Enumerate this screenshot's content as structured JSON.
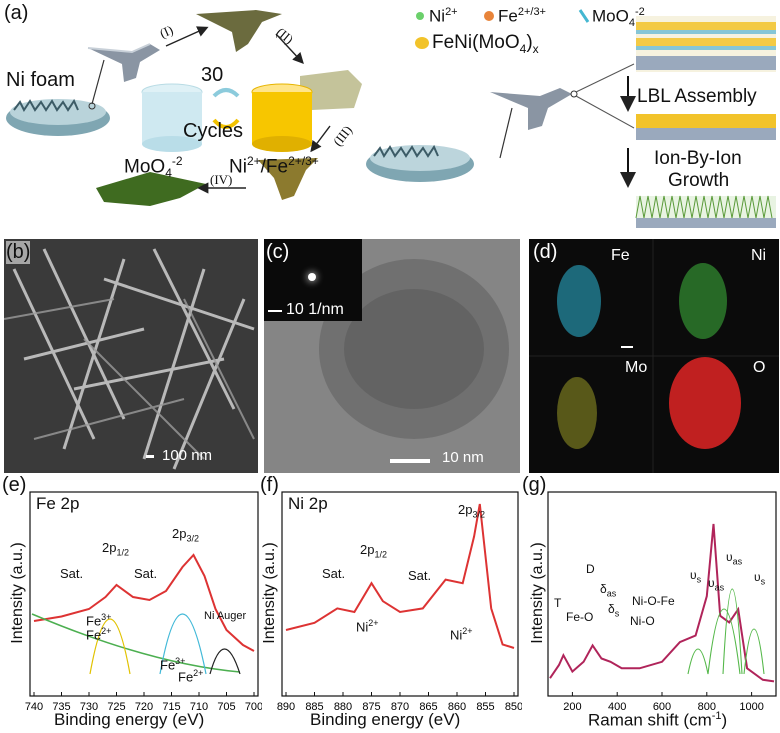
{
  "panels": {
    "a": {
      "label": "(a)",
      "ni_foam": "Ni foam",
      "steps": [
        "(I)",
        "(II)",
        "(III)",
        "(IV)"
      ],
      "cycles_number": "30",
      "cycles_word": "Cycles",
      "moo4_label": "MoO",
      "moo4_sub": "4",
      "moo4_sup": "-2",
      "nife_label": "Ni",
      "nife_sup1": "2+",
      "nife_mid": "/Fe",
      "nife_sup2": "2+/3+",
      "legend": {
        "ni": "Ni",
        "ni_sup": "2+",
        "fe": "Fe",
        "fe_sup": "2+/3+",
        "moo": "MoO",
        "moo_sub": "4",
        "moo_sup": "-2",
        "feni": "FeNi(MoO",
        "feni_sub": "4",
        "feni_end": ")",
        "feni_x": "x"
      },
      "lbl_assembly": "LBL Assembly",
      "ion_growth_1": "Ion-By-Ion",
      "ion_growth_2": "Growth"
    },
    "b": {
      "label": "(b)",
      "scale": "100 nm"
    },
    "c": {
      "label": "(c)",
      "inset_scale": "10 1/nm",
      "scale": "10 nm"
    },
    "d": {
      "label": "(d)",
      "fe": "Fe",
      "ni": "Ni",
      "mo": "Mo",
      "o": "O"
    },
    "e": {
      "label": "(e)",
      "title": "Fe 2p",
      "ylabel": "Intensity (a.u.)",
      "xlabel": "Binding energy (eV)",
      "ticks": [
        "740",
        "735",
        "730",
        "725",
        "720",
        "715",
        "710",
        "705",
        "700"
      ],
      "ann": {
        "sat1": "Sat.",
        "p12": "2p",
        "p12s": "1/2",
        "sat2": "Sat.",
        "p32": "2p",
        "p32s": "3/2",
        "fe3": "Fe",
        "fe3s": "3+",
        "fe2": "Fe",
        "fe2s": "2+",
        "fe3b": "Fe",
        "fe3bs": "3+",
        "fe2b": "Fe",
        "fe2bs": "2+",
        "auger": "Ni Auger"
      }
    },
    "f": {
      "label": "(f)",
      "title": "Ni 2p",
      "ylabel": "Intensity (a.u.)",
      "xlabel": "Binding energy (eV)",
      "ticks": [
        "890",
        "885",
        "880",
        "875",
        "870",
        "865",
        "860",
        "855",
        "850"
      ],
      "ann": {
        "sat1": "Sat.",
        "p12": "2p",
        "p12s": "1/2",
        "sat2": "Sat.",
        "p32": "2p",
        "p32s": "3/2",
        "ni1": "Ni",
        "ni1s": "2+",
        "ni2": "Ni",
        "ni2s": "2+"
      }
    },
    "g": {
      "label": "(g)",
      "ylabel": "Intensity (a.u.)",
      "xlabel": "Raman shift (cm",
      "xlabel_sup": "-1",
      "xlabel_end": ")",
      "ticks": [
        "200",
        "400",
        "600",
        "800",
        "1000"
      ],
      "ann": {
        "t": "T",
        "feo": "Fe-O",
        "d": "D",
        "das": "δ",
        "das_s": "as",
        "ds": "δ",
        "ds_s": "s",
        "nio": "Ni-O",
        "niofe": "Ni-O-Fe",
        "vs1": "υ",
        "vs1_s": "s",
        "vas1": "υ",
        "vas1_s": "as",
        "vas2": "υ",
        "vas2_s": "as",
        "vs2": "υ",
        "vs2_s": "s"
      }
    }
  },
  "chart_data": [
    {
      "type": "line",
      "title": "Fe 2p",
      "xlabel": "Binding energy (eV)",
      "ylabel": "Intensity (a.u.)",
      "xlim": [
        740,
        700
      ],
      "x": [
        740,
        735,
        730,
        727,
        725,
        722,
        719,
        716,
        713,
        711,
        709,
        707,
        705,
        702,
        700
      ],
      "series": [
        {
          "values": [
            0.42,
            0.45,
            0.5,
            0.58,
            0.66,
            0.58,
            0.56,
            0.62,
            0.78,
            0.86,
            0.72,
            0.5,
            0.36,
            0.26,
            0.22
          ]
        }
      ]
    },
    {
      "type": "line",
      "title": "Ni 2p",
      "xlabel": "Binding energy (eV)",
      "ylabel": "Intensity (a.u.)",
      "xlim": [
        890,
        850
      ],
      "x": [
        890,
        885,
        881,
        878,
        875,
        873,
        870,
        866,
        862,
        859,
        857,
        856,
        854,
        852,
        850
      ],
      "series": [
        {
          "values": [
            0.3,
            0.34,
            0.42,
            0.4,
            0.56,
            0.46,
            0.4,
            0.42,
            0.58,
            0.56,
            0.82,
            1.0,
            0.42,
            0.22,
            0.2
          ]
        }
      ]
    },
    {
      "type": "line",
      "xlabel": "Raman shift (cm-1)",
      "ylabel": "Intensity (a.u.)",
      "xlim": [
        100,
        1100
      ],
      "x": [
        100,
        140,
        160,
        200,
        250,
        290,
        330,
        370,
        420,
        500,
        600,
        680,
        750,
        800,
        830,
        860,
        900,
        940,
        980,
        1050,
        1100
      ],
      "series": [
        {
          "values": [
            0.06,
            0.14,
            0.2,
            0.1,
            0.16,
            0.26,
            0.18,
            0.16,
            0.12,
            0.12,
            0.16,
            0.28,
            0.32,
            0.56,
            1.0,
            0.44,
            0.4,
            0.48,
            0.12,
            0.05,
            0.04
          ]
        }
      ]
    }
  ]
}
